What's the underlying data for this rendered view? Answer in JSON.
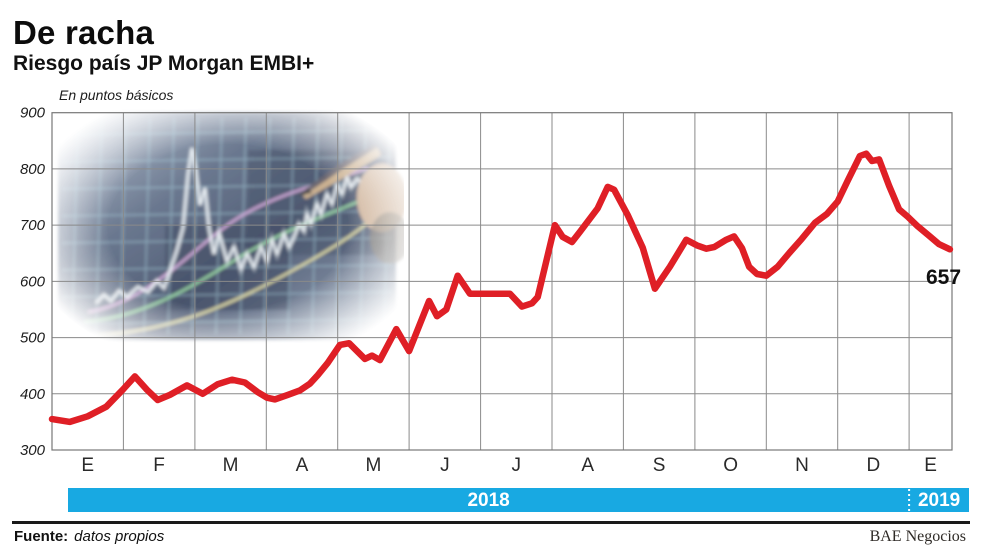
{
  "header": {
    "title": "De racha",
    "subtitle": "Riesgo país JP Morgan EMBI+"
  },
  "chart_data": {
    "type": "line",
    "title": "Riesgo país JP Morgan EMBI+",
    "ylabel": "En puntos básicos",
    "ylim": [
      300,
      900
    ],
    "yticks": [
      900,
      800,
      700,
      600,
      500,
      400,
      300
    ],
    "grid": true,
    "x_axis": {
      "months": [
        "E",
        "F",
        "M",
        "A",
        "M",
        "J",
        "J",
        "A",
        "S",
        "O",
        "N",
        "D",
        "E"
      ],
      "extent_months": 12.6,
      "year_bands": [
        {
          "label": "2018",
          "from_month": 0,
          "to_month": 12
        },
        {
          "label": "2019",
          "from_month": 12,
          "to_month": 12.6
        }
      ]
    },
    "series": [
      {
        "name": "Riesgo país EMBI+ (puntos básicos)",
        "color": "#df1f26",
        "points": [
          [
            0,
            355
          ],
          [
            0.25,
            350
          ],
          [
            0.5,
            360
          ],
          [
            0.76,
            377
          ],
          [
            0.99,
            407
          ],
          [
            1.16,
            431
          ],
          [
            1.33,
            407
          ],
          [
            1.48,
            389
          ],
          [
            1.65,
            398
          ],
          [
            1.89,
            415
          ],
          [
            2.11,
            400
          ],
          [
            2.32,
            417
          ],
          [
            2.52,
            425
          ],
          [
            2.7,
            420
          ],
          [
            2.88,
            403
          ],
          [
            3.01,
            393
          ],
          [
            3.12,
            390
          ],
          [
            3.3,
            398
          ],
          [
            3.47,
            406
          ],
          [
            3.61,
            418
          ],
          [
            3.72,
            433
          ],
          [
            3.86,
            455
          ],
          [
            4.03,
            487
          ],
          [
            4.16,
            490
          ],
          [
            4.38,
            462
          ],
          [
            4.48,
            468
          ],
          [
            4.59,
            460
          ],
          [
            4.82,
            515
          ],
          [
            5,
            476
          ],
          [
            5.28,
            565
          ],
          [
            5.39,
            538
          ],
          [
            5.52,
            550
          ],
          [
            5.68,
            610
          ],
          [
            5.85,
            578
          ],
          [
            6.03,
            578
          ],
          [
            6.41,
            578
          ],
          [
            6.58,
            555
          ],
          [
            6.72,
            561
          ],
          [
            6.8,
            572
          ],
          [
            7.04,
            700
          ],
          [
            7.15,
            679
          ],
          [
            7.28,
            670
          ],
          [
            7.39,
            688
          ],
          [
            7.64,
            730
          ],
          [
            7.78,
            768
          ],
          [
            7.87,
            763
          ],
          [
            8.06,
            718
          ],
          [
            8.27,
            660
          ],
          [
            8.44,
            587
          ],
          [
            8.65,
            626
          ],
          [
            8.88,
            674
          ],
          [
            9.03,
            664
          ],
          [
            9.16,
            658
          ],
          [
            9.27,
            661
          ],
          [
            9.44,
            674
          ],
          [
            9.55,
            680
          ],
          [
            9.66,
            659
          ],
          [
            9.76,
            626
          ],
          [
            9.87,
            613
          ],
          [
            10,
            610
          ],
          [
            10.16,
            626
          ],
          [
            10.32,
            650
          ],
          [
            10.5,
            676
          ],
          [
            10.68,
            704
          ],
          [
            10.85,
            720
          ],
          [
            11,
            742
          ],
          [
            11.14,
            779
          ],
          [
            11.31,
            823
          ],
          [
            11.4,
            827
          ],
          [
            11.48,
            814
          ],
          [
            11.58,
            817
          ],
          [
            11.72,
            770
          ],
          [
            11.86,
            728
          ],
          [
            11.98,
            715
          ],
          [
            12.12,
            698
          ],
          [
            12.28,
            681
          ],
          [
            12.42,
            666
          ],
          [
            12.57,
            657
          ]
        ]
      }
    ],
    "end_label": "657"
  },
  "colors": {
    "line": "#df1f26",
    "band": "#18a9e2",
    "grid": "#8a8a8a"
  },
  "footer": {
    "source_label": "Fuente:",
    "source_value": "datos propios",
    "credit": "BAE Negocios"
  }
}
